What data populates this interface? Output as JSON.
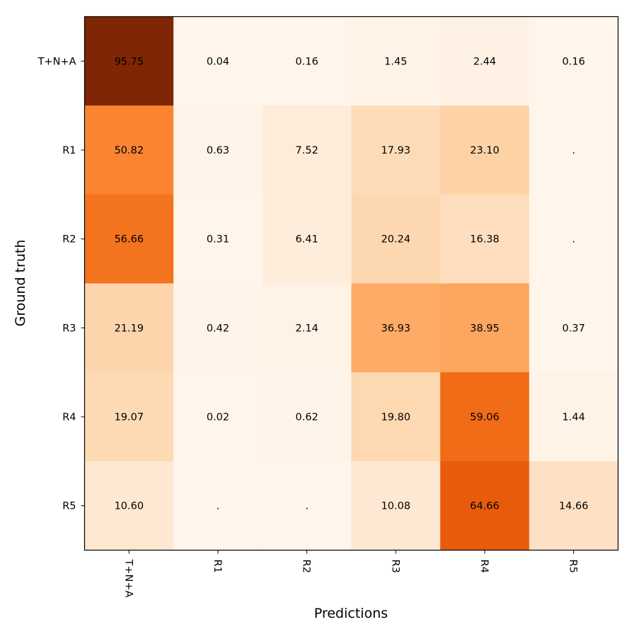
{
  "chart_data": {
    "type": "heatmap",
    "title": "",
    "xlabel": "Predictions",
    "ylabel": "Ground truth",
    "x_categories": [
      "T+N+A",
      "R1",
      "R2",
      "R3",
      "R4",
      "R5"
    ],
    "y_categories": [
      "T+N+A",
      "R1",
      "R2",
      "R3",
      "R4",
      "R5"
    ],
    "values": [
      [
        95.75,
        0.04,
        0.16,
        1.45,
        2.44,
        0.16
      ],
      [
        50.82,
        0.63,
        7.52,
        17.93,
        23.1,
        null
      ],
      [
        56.66,
        0.31,
        6.41,
        20.24,
        16.38,
        null
      ],
      [
        21.19,
        0.42,
        2.14,
        36.93,
        38.95,
        0.37
      ],
      [
        19.07,
        0.02,
        0.62,
        19.8,
        59.06,
        1.44
      ],
      [
        10.6,
        null,
        null,
        10.08,
        64.66,
        14.66
      ]
    ],
    "labels": [
      [
        "95.75",
        "0.04",
        "0.16",
        "1.45",
        "2.44",
        "0.16"
      ],
      [
        "50.82",
        "0.63",
        "7.52",
        "17.93",
        "23.10",
        "."
      ],
      [
        "56.66",
        "0.31",
        "6.41",
        "20.24",
        "16.38",
        "."
      ],
      [
        "21.19",
        "0.42",
        "2.14",
        "36.93",
        "38.95",
        "0.37"
      ],
      [
        "19.07",
        "0.02",
        "0.62",
        "19.80",
        "59.06",
        "1.44"
      ],
      [
        "10.60",
        ".",
        ".",
        "10.08",
        "64.66",
        "14.66"
      ]
    ],
    "value_range": [
      0,
      95.75
    ],
    "colormap": "Oranges",
    "x_tick_rotation": "vertical",
    "grid": false
  }
}
